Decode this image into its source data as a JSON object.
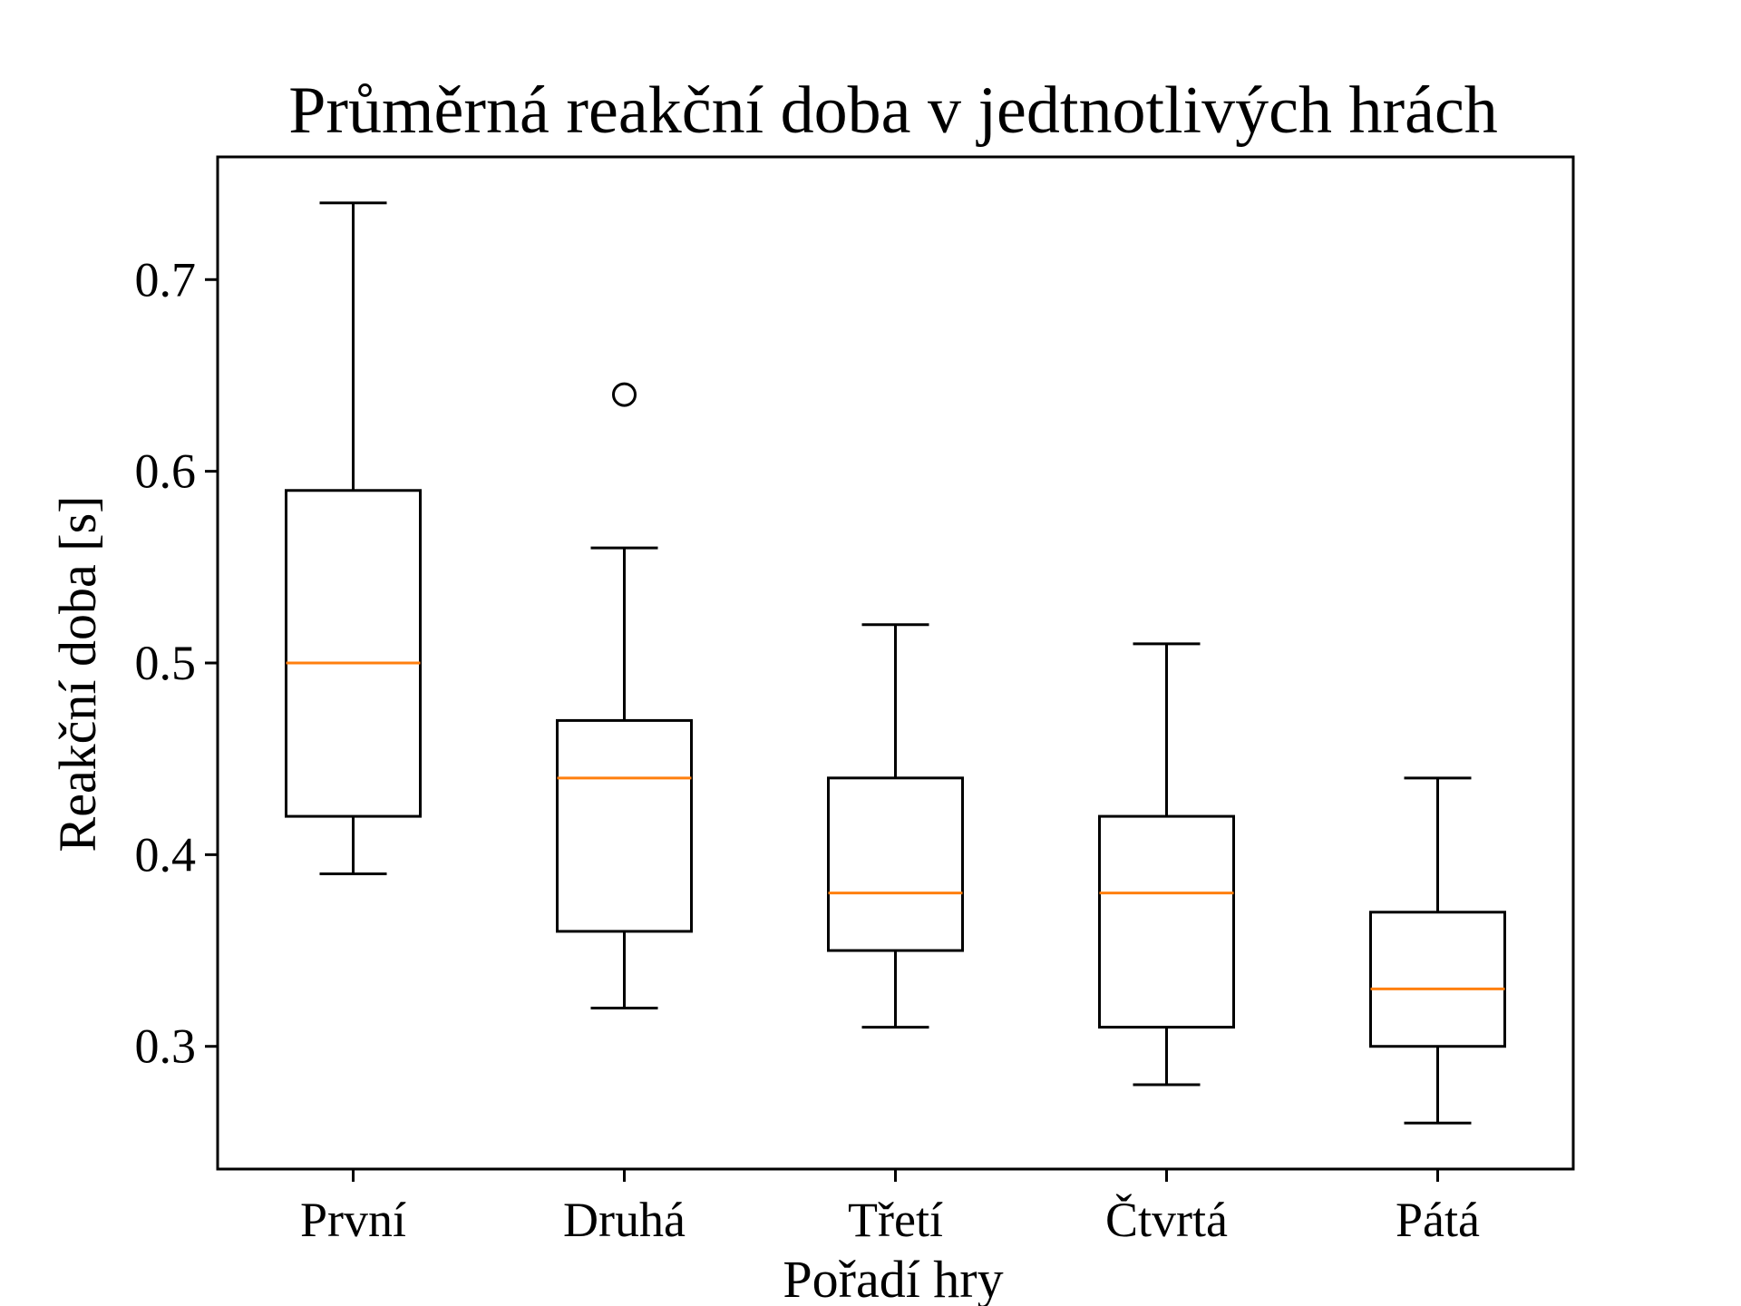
{
  "chart_data": {
    "type": "boxplot",
    "title": "Průměrná reakční doba v jedtnotlivých hrách",
    "xlabel": "Pořadí hry",
    "ylabel": "Reakční doba [s]",
    "ylim": [
      0.236,
      0.764
    ],
    "yticks": [
      0.3,
      0.4,
      0.5,
      0.6,
      0.7
    ],
    "ytick_labels": [
      "0.3",
      "0.4",
      "0.5",
      "0.6",
      "0.7"
    ],
    "categories": [
      "První",
      "Druhá",
      "Třetí",
      "Čtvrtá",
      "Pátá"
    ],
    "boxes": [
      {
        "whisker_low": 0.39,
        "q1": 0.42,
        "median": 0.5,
        "q3": 0.59,
        "whisker_high": 0.74,
        "outliers": []
      },
      {
        "whisker_low": 0.32,
        "q1": 0.36,
        "median": 0.44,
        "q3": 0.47,
        "whisker_high": 0.56,
        "outliers": [
          0.64
        ]
      },
      {
        "whisker_low": 0.31,
        "q1": 0.35,
        "median": 0.38,
        "q3": 0.44,
        "whisker_high": 0.52,
        "outliers": []
      },
      {
        "whisker_low": 0.28,
        "q1": 0.31,
        "median": 0.38,
        "q3": 0.42,
        "whisker_high": 0.51,
        "outliers": []
      },
      {
        "whisker_low": 0.26,
        "q1": 0.3,
        "median": 0.33,
        "q3": 0.37,
        "whisker_high": 0.44,
        "outliers": []
      }
    ],
    "grid": false,
    "colors": {
      "box": "#000000",
      "median": "#ff7f0e",
      "outlier": "#000000"
    }
  }
}
